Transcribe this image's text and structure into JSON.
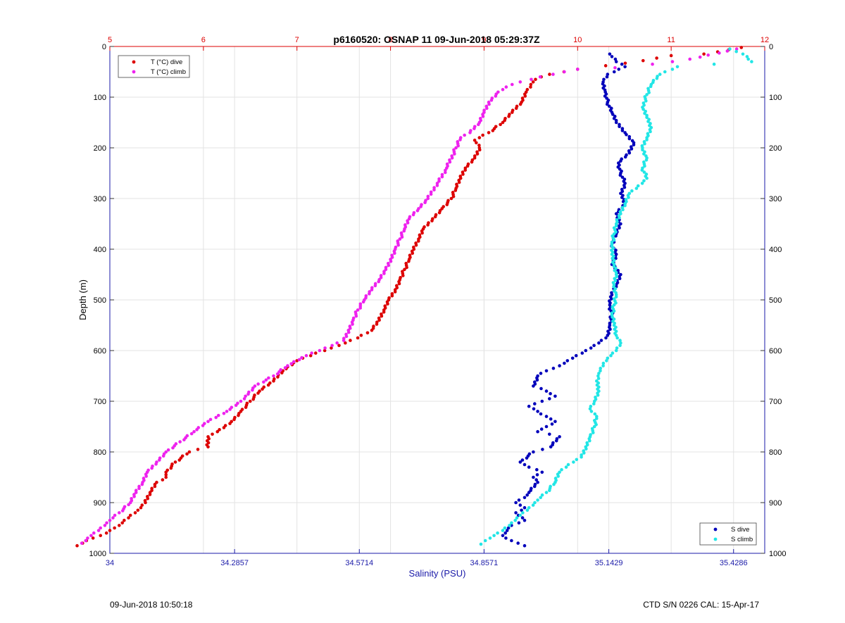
{
  "chart_data": {
    "type": "scatter",
    "title": "p6160520: OSNAP 11 09-Jun-2018 05:29:37Z",
    "ylabel": "Depth (m)",
    "xlabel_bottom": "Salinity (PSU)",
    "ylim": [
      1000,
      0
    ],
    "yticks": [
      0,
      100,
      200,
      300,
      400,
      500,
      600,
      700,
      800,
      900,
      1000
    ],
    "xlim_bottom": [
      34,
      35.5
    ],
    "xticks_bottom": [
      34,
      34.2857,
      34.5714,
      34.8571,
      35.1429,
      35.4286
    ],
    "xlim_top": [
      5,
      12
    ],
    "xticks_top": [
      5,
      6,
      7,
      8,
      9,
      10,
      11,
      12
    ],
    "grid": true,
    "legend_top": {
      "placement": "top-left",
      "entries": [
        "T (°C) dive",
        "T (°C) climb"
      ]
    },
    "legend_bottom": {
      "placement": "bottom-right",
      "entries": [
        "S dive",
        "S climb"
      ]
    },
    "colors": {
      "t_dive": "#dd0000",
      "t_climb": "#ee22ee",
      "s_dive": "#0000bb",
      "s_climb": "#22e6e6",
      "top_axis": "#dd0000",
      "bottom_axis": "#1a1aa8"
    },
    "series": [
      {
        "name": "T (°C) dive",
        "axis": "top",
        "points": [
          [
            11.75,
            2
          ],
          [
            11.35,
            15
          ],
          [
            11.0,
            18
          ],
          [
            10.7,
            28
          ],
          [
            10.3,
            38
          ],
          [
            10.0,
            45
          ],
          [
            9.7,
            55
          ],
          [
            9.55,
            65
          ],
          [
            9.5,
            75
          ],
          [
            9.45,
            90
          ],
          [
            9.4,
            110
          ],
          [
            9.3,
            130
          ],
          [
            9.2,
            150
          ],
          [
            9.05,
            170
          ],
          [
            8.9,
            185
          ],
          [
            8.95,
            200
          ],
          [
            8.9,
            220
          ],
          [
            8.8,
            240
          ],
          [
            8.75,
            260
          ],
          [
            8.7,
            280
          ],
          [
            8.65,
            300
          ],
          [
            8.55,
            320
          ],
          [
            8.45,
            340
          ],
          [
            8.35,
            360
          ],
          [
            8.3,
            380
          ],
          [
            8.25,
            400
          ],
          [
            8.2,
            420
          ],
          [
            8.15,
            440
          ],
          [
            8.1,
            460
          ],
          [
            8.05,
            480
          ],
          [
            7.98,
            500
          ],
          [
            7.93,
            520
          ],
          [
            7.88,
            540
          ],
          [
            7.8,
            560
          ],
          [
            7.65,
            575
          ],
          [
            7.45,
            590
          ],
          [
            7.2,
            605
          ],
          [
            7.0,
            620
          ],
          [
            6.85,
            640
          ],
          [
            6.75,
            660
          ],
          [
            6.6,
            680
          ],
          [
            6.5,
            700
          ],
          [
            6.4,
            720
          ],
          [
            6.3,
            740
          ],
          [
            6.15,
            760
          ],
          [
            6.05,
            770
          ],
          [
            6.05,
            790
          ],
          [
            5.85,
            800
          ],
          [
            5.7,
            820
          ],
          [
            5.6,
            840
          ],
          [
            5.6,
            850
          ],
          [
            5.5,
            860
          ],
          [
            5.43,
            880
          ],
          [
            5.38,
            900
          ],
          [
            5.3,
            915
          ],
          [
            5.2,
            930
          ],
          [
            5.1,
            945
          ],
          [
            5.0,
            955
          ],
          [
            4.9,
            965
          ],
          [
            4.75,
            975
          ],
          [
            4.65,
            985
          ]
        ]
      },
      {
        "name": "T (°C) climb",
        "axis": "top",
        "points": [
          [
            11.7,
            5
          ],
          [
            11.2,
            25
          ],
          [
            10.8,
            35
          ],
          [
            10.4,
            42
          ],
          [
            10.0,
            45
          ],
          [
            9.6,
            60
          ],
          [
            9.3,
            75
          ],
          [
            9.15,
            90
          ],
          [
            9.05,
            110
          ],
          [
            9.0,
            130
          ],
          [
            8.95,
            150
          ],
          [
            8.85,
            170
          ],
          [
            8.75,
            180
          ],
          [
            8.7,
            200
          ],
          [
            8.6,
            240
          ],
          [
            8.5,
            270
          ],
          [
            8.4,
            300
          ],
          [
            8.3,
            320
          ],
          [
            8.2,
            340
          ],
          [
            8.15,
            360
          ],
          [
            8.1,
            380
          ],
          [
            8.05,
            400
          ],
          [
            8.0,
            420
          ],
          [
            7.95,
            440
          ],
          [
            7.88,
            460
          ],
          [
            7.8,
            480
          ],
          [
            7.72,
            500
          ],
          [
            7.65,
            520
          ],
          [
            7.6,
            540
          ],
          [
            7.55,
            560
          ],
          [
            7.5,
            580
          ],
          [
            7.3,
            595
          ],
          [
            7.1,
            610
          ],
          [
            6.9,
            630
          ],
          [
            6.75,
            650
          ],
          [
            6.55,
            670
          ],
          [
            6.45,
            690
          ],
          [
            6.4,
            700
          ],
          [
            6.25,
            720
          ],
          [
            6.05,
            740
          ],
          [
            5.9,
            760
          ],
          [
            5.75,
            780
          ],
          [
            5.6,
            800
          ],
          [
            5.5,
            820
          ],
          [
            5.4,
            840
          ],
          [
            5.35,
            860
          ],
          [
            5.28,
            880
          ],
          [
            5.22,
            900
          ],
          [
            5.1,
            920
          ],
          [
            5.0,
            935
          ],
          [
            4.9,
            950
          ],
          [
            4.8,
            965
          ],
          [
            4.7,
            980
          ]
        ]
      },
      {
        "name": "S dive",
        "axis": "bottom",
        "points": [
          [
            35.145,
            15
          ],
          [
            35.16,
            30
          ],
          [
            35.18,
            40
          ],
          [
            35.14,
            55
          ],
          [
            35.13,
            70
          ],
          [
            35.135,
            90
          ],
          [
            35.14,
            110
          ],
          [
            35.15,
            130
          ],
          [
            35.16,
            150
          ],
          [
            35.18,
            170
          ],
          [
            35.2,
            190
          ],
          [
            35.19,
            210
          ],
          [
            35.165,
            230
          ],
          [
            35.17,
            250
          ],
          [
            35.18,
            270
          ],
          [
            35.17,
            290
          ],
          [
            35.18,
            310
          ],
          [
            35.16,
            330
          ],
          [
            35.17,
            350
          ],
          [
            35.16,
            370
          ],
          [
            35.15,
            390
          ],
          [
            35.16,
            410
          ],
          [
            35.15,
            430
          ],
          [
            35.17,
            450
          ],
          [
            35.16,
            470
          ],
          [
            35.15,
            490
          ],
          [
            35.145,
            510
          ],
          [
            35.15,
            530
          ],
          [
            35.145,
            550
          ],
          [
            35.14,
            570
          ],
          [
            35.12,
            585
          ],
          [
            35.09,
            600
          ],
          [
            35.06,
            615
          ],
          [
            35.03,
            630
          ],
          [
            35.0,
            640
          ],
          [
            34.98,
            650
          ],
          [
            34.97,
            670
          ],
          [
            35.0,
            680
          ],
          [
            35.02,
            690
          ],
          [
            34.99,
            700
          ],
          [
            34.96,
            710
          ],
          [
            34.98,
            720
          ],
          [
            35.0,
            730
          ],
          [
            35.02,
            740
          ],
          [
            35.0,
            750
          ],
          [
            34.98,
            760
          ],
          [
            35.03,
            770
          ],
          [
            35.01,
            790
          ],
          [
            34.97,
            800
          ],
          [
            34.94,
            820
          ],
          [
            34.96,
            830
          ],
          [
            34.99,
            840
          ],
          [
            34.97,
            850
          ],
          [
            34.98,
            860
          ],
          [
            34.96,
            880
          ],
          [
            34.95,
            890
          ],
          [
            34.93,
            900
          ],
          [
            34.95,
            910
          ],
          [
            34.93,
            920
          ],
          [
            34.95,
            935
          ],
          [
            34.92,
            945
          ],
          [
            34.91,
            955
          ],
          [
            34.9,
            965
          ],
          [
            34.92,
            975
          ],
          [
            34.95,
            985
          ]
        ]
      },
      {
        "name": "S climb",
        "axis": "bottom",
        "points": [
          [
            35.42,
            5
          ],
          [
            35.45,
            15
          ],
          [
            35.47,
            30
          ],
          [
            35.3,
            40
          ],
          [
            35.26,
            55
          ],
          [
            35.24,
            75
          ],
          [
            35.23,
            95
          ],
          [
            35.22,
            120
          ],
          [
            35.23,
            140
          ],
          [
            35.24,
            160
          ],
          [
            35.23,
            180
          ],
          [
            35.22,
            200
          ],
          [
            35.23,
            220
          ],
          [
            35.22,
            240
          ],
          [
            35.23,
            260
          ],
          [
            35.21,
            275
          ],
          [
            35.19,
            290
          ],
          [
            35.18,
            310
          ],
          [
            35.17,
            330
          ],
          [
            35.16,
            350
          ],
          [
            35.155,
            370
          ],
          [
            35.15,
            390
          ],
          [
            35.15,
            410
          ],
          [
            35.155,
            430
          ],
          [
            35.16,
            450
          ],
          [
            35.155,
            470
          ],
          [
            35.16,
            490
          ],
          [
            35.155,
            510
          ],
          [
            35.15,
            530
          ],
          [
            35.155,
            550
          ],
          [
            35.16,
            570
          ],
          [
            35.17,
            585
          ],
          [
            35.16,
            600
          ],
          [
            35.14,
            615
          ],
          [
            35.13,
            630
          ],
          [
            35.12,
            645
          ],
          [
            35.115,
            660
          ],
          [
            35.12,
            680
          ],
          [
            35.11,
            700
          ],
          [
            35.1,
            715
          ],
          [
            35.115,
            730
          ],
          [
            35.11,
            750
          ],
          [
            35.1,
            770
          ],
          [
            35.09,
            790
          ],
          [
            35.08,
            810
          ],
          [
            35.05,
            825
          ],
          [
            35.03,
            840
          ],
          [
            35.02,
            860
          ],
          [
            35.0,
            880
          ],
          [
            34.98,
            895
          ],
          [
            34.96,
            910
          ],
          [
            34.94,
            925
          ],
          [
            34.92,
            940
          ],
          [
            34.9,
            955
          ],
          [
            34.88,
            965
          ],
          [
            34.86,
            975
          ],
          [
            34.85,
            982
          ]
        ]
      }
    ]
  },
  "footer": {
    "timestamp": "09-Jun-2018 10:50:18",
    "ctd_info": "CTD S/N 0226  CAL: 15-Apr-17"
  }
}
